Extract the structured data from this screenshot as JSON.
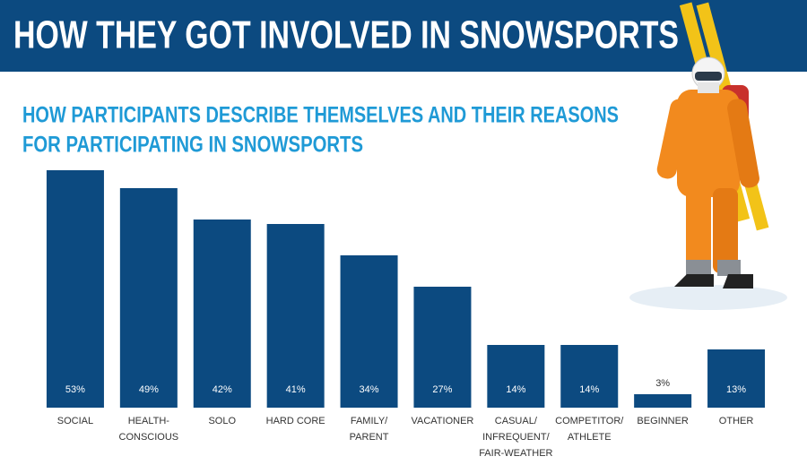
{
  "chart_data": {
    "type": "bar",
    "title": "HOW THEY GOT INVOLVED IN SNOWSPORTS",
    "subtitle": [
      "HOW PARTICIPANTS DESCRIBE THEMSELVES AND THEIR REASONS",
      "FOR PARTICIPATING IN SNOWSPORTS"
    ],
    "categories": [
      "SOCIAL",
      "HEALTH-\nCONSCIOUS",
      "SOLO",
      "HARD CORE",
      "FAMILY/\nPARENT",
      "VACATIONER",
      "CASUAL/\nINFREQUENT/\nFAIR-WEATHER",
      "COMPETITOR/\nATHLETE",
      "BEGINNER",
      "OTHER"
    ],
    "values": [
      53,
      49,
      42,
      41,
      34,
      27,
      14,
      14,
      3,
      13
    ],
    "value_labels": [
      "53%",
      "49%",
      "42%",
      "41%",
      "34%",
      "27%",
      "14%",
      "14%",
      "3%",
      "13%"
    ],
    "color": "#0c4a80"
  }
}
